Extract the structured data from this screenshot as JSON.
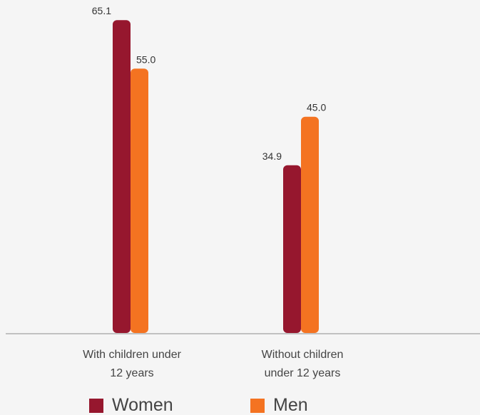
{
  "chart_data": {
    "type": "bar",
    "categories": [
      "With children under 12 years",
      "Without children under 12 years"
    ],
    "category_lines": [
      [
        "With children under",
        "12 years"
      ],
      [
        "Without children",
        "under 12 years"
      ]
    ],
    "series": [
      {
        "name": "Women",
        "values": [
          65.1,
          34.9
        ],
        "color": "#96172e"
      },
      {
        "name": "Men",
        "values": [
          55.0,
          45.0
        ],
        "color": "#f47321"
      }
    ],
    "value_labels": [
      [
        "65.1",
        "34.9"
      ],
      [
        "55.0",
        "45.0"
      ]
    ],
    "ylim": [
      0,
      70
    ],
    "grid": false,
    "legend_position": "bottom"
  },
  "colors": {
    "background": "#f5f5f5",
    "axis": "#b0b0b0"
  }
}
